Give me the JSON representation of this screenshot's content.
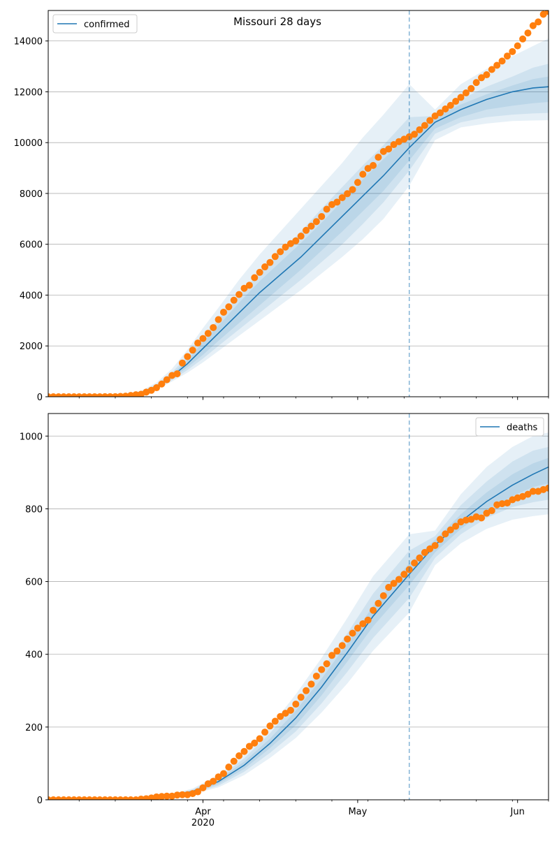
{
  "chart_data": [
    {
      "type": "line",
      "title": "Missouri 28 days",
      "xlabel": "",
      "ylabel": "",
      "x_type": "date",
      "xlim": [
        "2020-03-02",
        "2020-06-07"
      ],
      "ylim": [
        0,
        15200
      ],
      "yticks": [
        0,
        2000,
        4000,
        6000,
        8000,
        10000,
        12000,
        14000
      ],
      "xticks": [
        {
          "date": "2020-04-01",
          "label": "Apr",
          "sublabel": "2020"
        },
        {
          "date": "2020-05-01",
          "label": "May",
          "sublabel": ""
        },
        {
          "date": "2020-06-01",
          "label": "Jun",
          "sublabel": ""
        }
      ],
      "grid": "horizontal",
      "legend_position": "top-left",
      "forecast_start": "2020-05-11",
      "colors": {
        "model": "#1f77b4",
        "observed": "#ff7f0e",
        "band": "#1f77b4",
        "vline": "#1f77b4"
      },
      "model_series": {
        "name": "confirmed",
        "x": [
          "2020-03-02",
          "2020-03-12",
          "2020-03-16",
          "2020-03-20",
          "2020-03-23",
          "2020-03-26",
          "2020-03-29",
          "2020-04-01",
          "2020-04-04",
          "2020-04-08",
          "2020-04-12",
          "2020-04-16",
          "2020-04-20",
          "2020-04-24",
          "2020-04-28",
          "2020-05-02",
          "2020-05-06",
          "2020-05-11",
          "2020-05-16",
          "2020-05-21",
          "2020-05-26",
          "2020-05-31",
          "2020-06-04",
          "2020-06-07"
        ],
        "y": [
          0,
          5,
          30,
          150,
          400,
          800,
          1300,
          1900,
          2500,
          3300,
          4100,
          4800,
          5500,
          6300,
          7100,
          7900,
          8700,
          9800,
          10800,
          11300,
          11700,
          12000,
          12150,
          12200
        ]
      },
      "bands": [
        {
          "lower": [
            0,
            4,
            20,
            100,
            290,
            600,
            950,
            1350,
            1800,
            2400,
            3000,
            3600,
            4200,
            4850,
            5500,
            6200,
            7000,
            8300,
            10100,
            10600,
            10750,
            10850,
            10870,
            10880
          ],
          "upper": [
            0,
            7,
            45,
            230,
            560,
            1100,
            1850,
            2700,
            3500,
            4600,
            5600,
            6500,
            7400,
            8300,
            9200,
            10200,
            11100,
            12300,
            11300,
            12300,
            12900,
            13400,
            13800,
            14100
          ]
        },
        {
          "lower": [
            0,
            4,
            24,
            115,
            320,
            660,
            1050,
            1500,
            2000,
            2650,
            3300,
            3950,
            4600,
            5300,
            6000,
            6800,
            7650,
            8900,
            10350,
            10800,
            11000,
            11100,
            11150,
            11170
          ],
          "upper": [
            0,
            6,
            38,
            195,
            490,
            960,
            1600,
            2350,
            3050,
            4000,
            4900,
            5700,
            6500,
            7400,
            8250,
            9100,
            9900,
            11000,
            11050,
            11700,
            12200,
            12600,
            12950,
            13100
          ]
        },
        {
          "lower": [
            0,
            4,
            27,
            130,
            355,
            720,
            1160,
            1650,
            2200,
            2900,
            3600,
            4300,
            5000,
            5750,
            6500,
            7300,
            8100,
            9300,
            10550,
            11000,
            11300,
            11450,
            11550,
            11600
          ],
          "upper": [
            0,
            6,
            34,
            170,
            450,
            880,
            1450,
            2150,
            2800,
            3700,
            4550,
            5300,
            6050,
            6850,
            7700,
            8550,
            9350,
            10300,
            11000,
            11500,
            11900,
            12250,
            12500,
            12600
          ]
        }
      ],
      "observed_series": {
        "x": [
          "2020-03-02",
          "2020-03-03",
          "2020-03-04",
          "2020-03-05",
          "2020-03-06",
          "2020-03-07",
          "2020-03-08",
          "2020-03-09",
          "2020-03-10",
          "2020-03-11",
          "2020-03-12",
          "2020-03-13",
          "2020-03-14",
          "2020-03-15",
          "2020-03-16",
          "2020-03-17",
          "2020-03-18",
          "2020-03-19",
          "2020-03-20",
          "2020-03-21",
          "2020-03-22",
          "2020-03-23",
          "2020-03-24",
          "2020-03-25",
          "2020-03-26",
          "2020-03-27",
          "2020-03-28",
          "2020-03-29",
          "2020-03-30",
          "2020-03-31",
          "2020-04-01",
          "2020-04-02",
          "2020-04-03",
          "2020-04-04",
          "2020-04-05",
          "2020-04-06",
          "2020-04-07",
          "2020-04-08",
          "2020-04-09",
          "2020-04-10",
          "2020-04-11",
          "2020-04-12",
          "2020-04-13",
          "2020-04-14",
          "2020-04-15",
          "2020-04-16",
          "2020-04-17",
          "2020-04-18",
          "2020-04-19",
          "2020-04-20",
          "2020-04-21",
          "2020-04-22",
          "2020-04-23",
          "2020-04-24",
          "2020-04-25",
          "2020-04-26",
          "2020-04-27",
          "2020-04-28",
          "2020-04-29",
          "2020-04-30",
          "2020-05-01",
          "2020-05-02",
          "2020-05-03",
          "2020-05-04",
          "2020-05-05",
          "2020-05-06",
          "2020-05-07",
          "2020-05-08",
          "2020-05-09",
          "2020-05-10",
          "2020-05-11",
          "2020-05-12",
          "2020-05-13",
          "2020-05-14",
          "2020-05-15",
          "2020-05-16",
          "2020-05-17",
          "2020-05-18",
          "2020-05-19",
          "2020-05-20",
          "2020-05-21",
          "2020-05-22",
          "2020-05-23",
          "2020-05-24",
          "2020-05-25",
          "2020-05-26",
          "2020-05-27",
          "2020-05-28",
          "2020-05-29",
          "2020-05-30",
          "2020-05-31",
          "2020-06-01",
          "2020-06-02",
          "2020-06-03",
          "2020-06-04",
          "2020-06-05",
          "2020-06-06",
          "2020-06-07"
        ],
        "y": [
          0,
          0,
          0,
          0,
          0,
          0,
          0,
          1,
          1,
          1,
          1,
          2,
          5,
          5,
          15,
          24,
          51,
          80,
          100,
          182,
          253,
          356,
          502,
          670,
          838,
          903,
          1327,
          1581,
          1834,
          2113,
          2291,
          2496,
          2722,
          3037,
          3327,
          3539,
          3799,
          4024,
          4269,
          4388,
          4686,
          4895,
          5111,
          5283,
          5517,
          5707,
          5890,
          6026,
          6137,
          6321,
          6547,
          6713,
          6893,
          7093,
          7380,
          7562,
          7660,
          7835,
          7990,
          8154,
          8434,
          8754,
          8986,
          9102,
          9426,
          9651,
          9749,
          9923,
          10041,
          10135,
          10232,
          10330,
          10508,
          10675,
          10872,
          11050,
          11174,
          11324,
          11466,
          11626,
          11780,
          11955,
          12128,
          12364,
          12553,
          12670,
          12878,
          13042,
          13210,
          13408,
          13583,
          13808,
          14079,
          14315,
          14602,
          14749,
          15049,
          15160
        ]
      }
    },
    {
      "type": "line",
      "title": "",
      "xlabel": "",
      "ylabel": "",
      "x_type": "date",
      "xlim": [
        "2020-03-02",
        "2020-06-07"
      ],
      "ylim": [
        0,
        1062
      ],
      "yticks": [
        0,
        200,
        400,
        600,
        800,
        1000
      ],
      "xticks": [
        {
          "date": "2020-04-01",
          "label": "Apr",
          "sublabel": "2020"
        },
        {
          "date": "2020-05-01",
          "label": "May",
          "sublabel": ""
        },
        {
          "date": "2020-06-01",
          "label": "Jun",
          "sublabel": ""
        }
      ],
      "grid": "horizontal",
      "legend_position": "top-right",
      "forecast_start": "2020-05-11",
      "colors": {
        "model": "#1f77b4",
        "observed": "#ff7f0e",
        "band": "#1f77b4",
        "vline": "#1f77b4"
      },
      "model_series": {
        "name": "deaths",
        "x": [
          "2020-03-02",
          "2020-03-20",
          "2020-03-25",
          "2020-03-30",
          "2020-04-04",
          "2020-04-09",
          "2020-04-14",
          "2020-04-19",
          "2020-04-24",
          "2020-04-29",
          "2020-05-04",
          "2020-05-11",
          "2020-05-16",
          "2020-05-21",
          "2020-05-26",
          "2020-05-31",
          "2020-06-04",
          "2020-06-07"
        ],
        "y": [
          0,
          2,
          9,
          23,
          50,
          95,
          155,
          225,
          310,
          405,
          505,
          620,
          700,
          765,
          820,
          865,
          895,
          915
        ]
      },
      "bands": [
        {
          "lower": [
            0,
            1,
            6,
            16,
            34,
            68,
            115,
            170,
            240,
            320,
            410,
            515,
            645,
            705,
            745,
            770,
            780,
            785
          ],
          "upper": [
            0,
            3,
            13,
            31,
            68,
            125,
            200,
            290,
            390,
            500,
            615,
            730,
            740,
            840,
            915,
            970,
            1000,
            1010
          ]
        },
        {
          "lower": [
            0,
            1,
            7,
            18,
            39,
            77,
            129,
            188,
            265,
            352,
            445,
            555,
            665,
            730,
            775,
            805,
            818,
            825
          ],
          "upper": [
            0,
            3,
            12,
            28,
            61,
            114,
            183,
            265,
            356,
            458,
            567,
            685,
            725,
            810,
            875,
            930,
            960,
            970
          ]
        },
        {
          "lower": [
            0,
            2,
            8,
            20,
            44,
            85,
            142,
            205,
            287,
            380,
            477,
            590,
            680,
            745,
            795,
            835,
            860,
            870
          ],
          "upper": [
            0,
            2,
            11,
            26,
            56,
            105,
            168,
            245,
            333,
            430,
            533,
            650,
            715,
            785,
            845,
            895,
            925,
            940
          ]
        }
      ],
      "observed_series": {
        "x": [
          "2020-03-02",
          "2020-03-03",
          "2020-03-04",
          "2020-03-05",
          "2020-03-06",
          "2020-03-07",
          "2020-03-08",
          "2020-03-09",
          "2020-03-10",
          "2020-03-11",
          "2020-03-12",
          "2020-03-13",
          "2020-03-14",
          "2020-03-15",
          "2020-03-16",
          "2020-03-17",
          "2020-03-18",
          "2020-03-19",
          "2020-03-20",
          "2020-03-21",
          "2020-03-22",
          "2020-03-23",
          "2020-03-24",
          "2020-03-25",
          "2020-03-26",
          "2020-03-27",
          "2020-03-28",
          "2020-03-29",
          "2020-03-30",
          "2020-03-31",
          "2020-04-01",
          "2020-04-02",
          "2020-04-03",
          "2020-04-04",
          "2020-04-05",
          "2020-04-06",
          "2020-04-07",
          "2020-04-08",
          "2020-04-09",
          "2020-04-10",
          "2020-04-11",
          "2020-04-12",
          "2020-04-13",
          "2020-04-14",
          "2020-04-15",
          "2020-04-16",
          "2020-04-17",
          "2020-04-18",
          "2020-04-19",
          "2020-04-20",
          "2020-04-21",
          "2020-04-22",
          "2020-04-23",
          "2020-04-24",
          "2020-04-25",
          "2020-04-26",
          "2020-04-27",
          "2020-04-28",
          "2020-04-29",
          "2020-04-30",
          "2020-05-01",
          "2020-05-02",
          "2020-05-03",
          "2020-05-04",
          "2020-05-05",
          "2020-05-06",
          "2020-05-07",
          "2020-05-08",
          "2020-05-09",
          "2020-05-10",
          "2020-05-11",
          "2020-05-12",
          "2020-05-13",
          "2020-05-14",
          "2020-05-15",
          "2020-05-16",
          "2020-05-17",
          "2020-05-18",
          "2020-05-19",
          "2020-05-20",
          "2020-05-21",
          "2020-05-22",
          "2020-05-23",
          "2020-05-24",
          "2020-05-25",
          "2020-05-26",
          "2020-05-27",
          "2020-05-28",
          "2020-05-29",
          "2020-05-30",
          "2020-05-31",
          "2020-06-01",
          "2020-06-02",
          "2020-06-03",
          "2020-06-04",
          "2020-06-05",
          "2020-06-06",
          "2020-06-07"
        ],
        "y": [
          0,
          0,
          0,
          0,
          0,
          0,
          0,
          0,
          0,
          0,
          0,
          0,
          0,
          0,
          0,
          0,
          0,
          0,
          2,
          3,
          5,
          8,
          9,
          10,
          10,
          13,
          14,
          14,
          17,
          22,
          33,
          44,
          51,
          63,
          72,
          90,
          106,
          121,
          133,
          147,
          156,
          168,
          186,
          203,
          216,
          229,
          238,
          246,
          263,
          282,
          300,
          318,
          340,
          358,
          374,
          397,
          409,
          424,
          442,
          458,
          472,
          484,
          494,
          521,
          540,
          561,
          584,
          595,
          606,
          620,
          633,
          651,
          665,
          680,
          690,
          699,
          716,
          731,
          742,
          752,
          764,
          769,
          771,
          778,
          775,
          788,
          795,
          811,
          814,
          816,
          825,
          830,
          834,
          840,
          848,
          848,
          853,
          857
        ]
      }
    }
  ]
}
